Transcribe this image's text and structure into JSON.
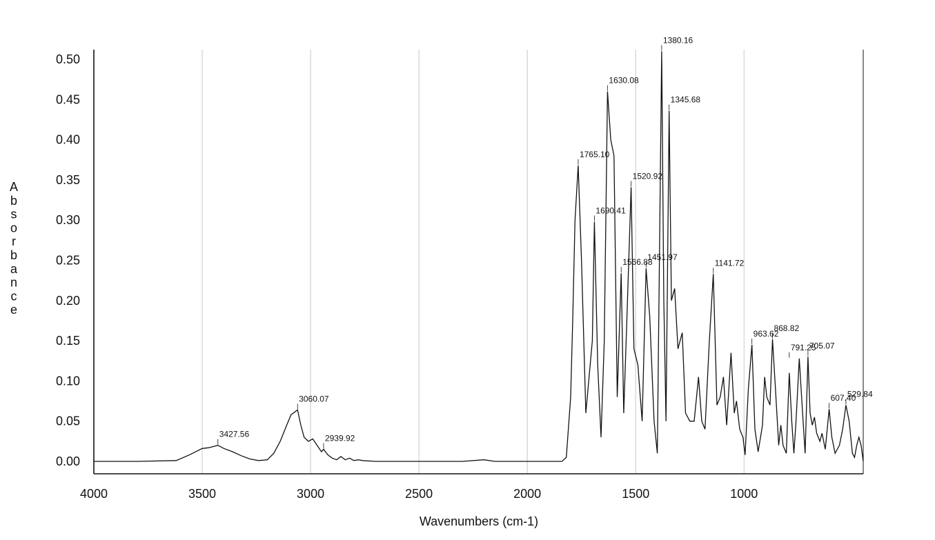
{
  "chart_data": {
    "type": "line",
    "title": "",
    "xlabel": "Wavenumbers (cm-1)",
    "ylabel": "Absorbance",
    "xlim": [
      4000,
      450
    ],
    "ylim": [
      0.0,
      0.51
    ],
    "x_reversed": true,
    "grid": "vertical",
    "x_ticks": [
      4000,
      3500,
      3000,
      2500,
      2000,
      1500,
      1000
    ],
    "y_ticks": [
      0.0,
      0.05,
      0.1,
      0.15,
      0.2,
      0.25,
      0.3,
      0.35,
      0.4,
      0.45,
      0.5
    ],
    "x_tick_labels": [
      "4000",
      "3500",
      "3000",
      "2500",
      "2000",
      "1500",
      "1000"
    ],
    "y_tick_labels": [
      "0.00",
      "0.05",
      "0.10",
      "0.15",
      "0.20",
      "0.25",
      "0.30",
      "0.35",
      "0.40",
      "0.45",
      "0.50"
    ],
    "series": [
      {
        "x": [
          4000,
          3800,
          3620,
          3560,
          3500,
          3470,
          3427.56,
          3400,
          3360,
          3320,
          3280,
          3240,
          3200,
          3170,
          3140,
          3110,
          3090,
          3070,
          3060.07,
          3045,
          3030,
          3010,
          2990,
          2970,
          2950,
          2939.92,
          2920,
          2900,
          2880,
          2860,
          2840,
          2820,
          2800,
          2780,
          2760,
          2700,
          2500,
          2300,
          2200,
          2150,
          2000,
          1840,
          1820,
          1800,
          1790,
          1780,
          1765.1,
          1750,
          1730,
          1700,
          1690.41,
          1675,
          1660,
          1645,
          1630.08,
          1615,
          1600,
          1585,
          1566.88,
          1555,
          1540,
          1520.92,
          1508,
          1490,
          1470,
          1451.97,
          1435,
          1415,
          1400,
          1380.16,
          1370,
          1360,
          1345.68,
          1335,
          1320,
          1305,
          1285,
          1270,
          1250,
          1230,
          1210,
          1195,
          1180,
          1160,
          1141.72,
          1125,
          1110,
          1095,
          1080,
          1060,
          1045,
          1035,
          1020,
          1005,
          995,
          980,
          963.62,
          950,
          935,
          915,
          905,
          895,
          880,
          868.82,
          855,
          840,
          830,
          820,
          805,
          791.25,
          780,
          770,
          760,
          745,
          730,
          718,
          705.07,
          695,
          685,
          675,
          665,
          650,
          640,
          625,
          607.4,
          595,
          580,
          560,
          545,
          529.84,
          515,
          500,
          490,
          480,
          470,
          460,
          450
        ],
        "y": [
          0.0,
          0.0,
          0.001,
          0.008,
          0.016,
          0.017,
          0.02,
          0.016,
          0.012,
          0.007,
          0.003,
          0.001,
          0.002,
          0.01,
          0.025,
          0.045,
          0.058,
          0.062,
          0.064,
          0.045,
          0.03,
          0.025,
          0.028,
          0.02,
          0.012,
          0.015,
          0.008,
          0.004,
          0.002,
          0.006,
          0.002,
          0.004,
          0.001,
          0.002,
          0.001,
          0.0,
          0.0,
          0.0,
          0.002,
          0.0,
          0.0,
          0.0,
          0.005,
          0.08,
          0.18,
          0.3,
          0.368,
          0.25,
          0.06,
          0.15,
          0.298,
          0.12,
          0.03,
          0.15,
          0.46,
          0.4,
          0.38,
          0.08,
          0.234,
          0.06,
          0.18,
          0.341,
          0.14,
          0.12,
          0.05,
          0.24,
          0.18,
          0.05,
          0.01,
          0.51,
          0.2,
          0.05,
          0.436,
          0.2,
          0.215,
          0.14,
          0.16,
          0.06,
          0.05,
          0.05,
          0.105,
          0.05,
          0.04,
          0.15,
          0.233,
          0.07,
          0.08,
          0.105,
          0.045,
          0.135,
          0.06,
          0.075,
          0.04,
          0.03,
          0.008,
          0.09,
          0.145,
          0.04,
          0.012,
          0.045,
          0.105,
          0.08,
          0.07,
          0.152,
          0.09,
          0.02,
          0.045,
          0.02,
          0.01,
          0.11,
          0.05,
          0.01,
          0.05,
          0.128,
          0.06,
          0.01,
          0.13,
          0.06,
          0.045,
          0.055,
          0.035,
          0.025,
          0.035,
          0.015,
          0.065,
          0.03,
          0.01,
          0.02,
          0.04,
          0.07,
          0.05,
          0.01,
          0.005,
          0.02,
          0.03,
          0.02,
          0.0
        ]
      }
    ],
    "annotations": [
      {
        "x": 3427.56,
        "y": 0.02,
        "label": "3427.56"
      },
      {
        "x": 3060.07,
        "y": 0.064,
        "label": "3060.07"
      },
      {
        "x": 2939.92,
        "y": 0.015,
        "label": "2939.92"
      },
      {
        "x": 1765.1,
        "y": 0.368,
        "label": "1765.10"
      },
      {
        "x": 1690.41,
        "y": 0.298,
        "label": "1690.41"
      },
      {
        "x": 1630.08,
        "y": 0.46,
        "label": "1630.08"
      },
      {
        "x": 1566.88,
        "y": 0.234,
        "label": "1566.88"
      },
      {
        "x": 1520.92,
        "y": 0.341,
        "label": "1520.92"
      },
      {
        "x": 1451.97,
        "y": 0.24,
        "label": "1451.97"
      },
      {
        "x": 1380.16,
        "y": 0.51,
        "label": "1380.16"
      },
      {
        "x": 1345.68,
        "y": 0.436,
        "label": "1345.68"
      },
      {
        "x": 1141.72,
        "y": 0.233,
        "label": "1141.72"
      },
      {
        "x": 963.62,
        "y": 0.145,
        "label": "963.62"
      },
      {
        "x": 868.82,
        "y": 0.152,
        "label": "868.82"
      },
      {
        "x": 791.25,
        "y": 0.128,
        "label": "791.25"
      },
      {
        "x": 705.07,
        "y": 0.13,
        "label": "705.07"
      },
      {
        "x": 607.4,
        "y": 0.065,
        "label": "607.40"
      },
      {
        "x": 529.84,
        "y": 0.07,
        "label": "529.84"
      }
    ]
  }
}
